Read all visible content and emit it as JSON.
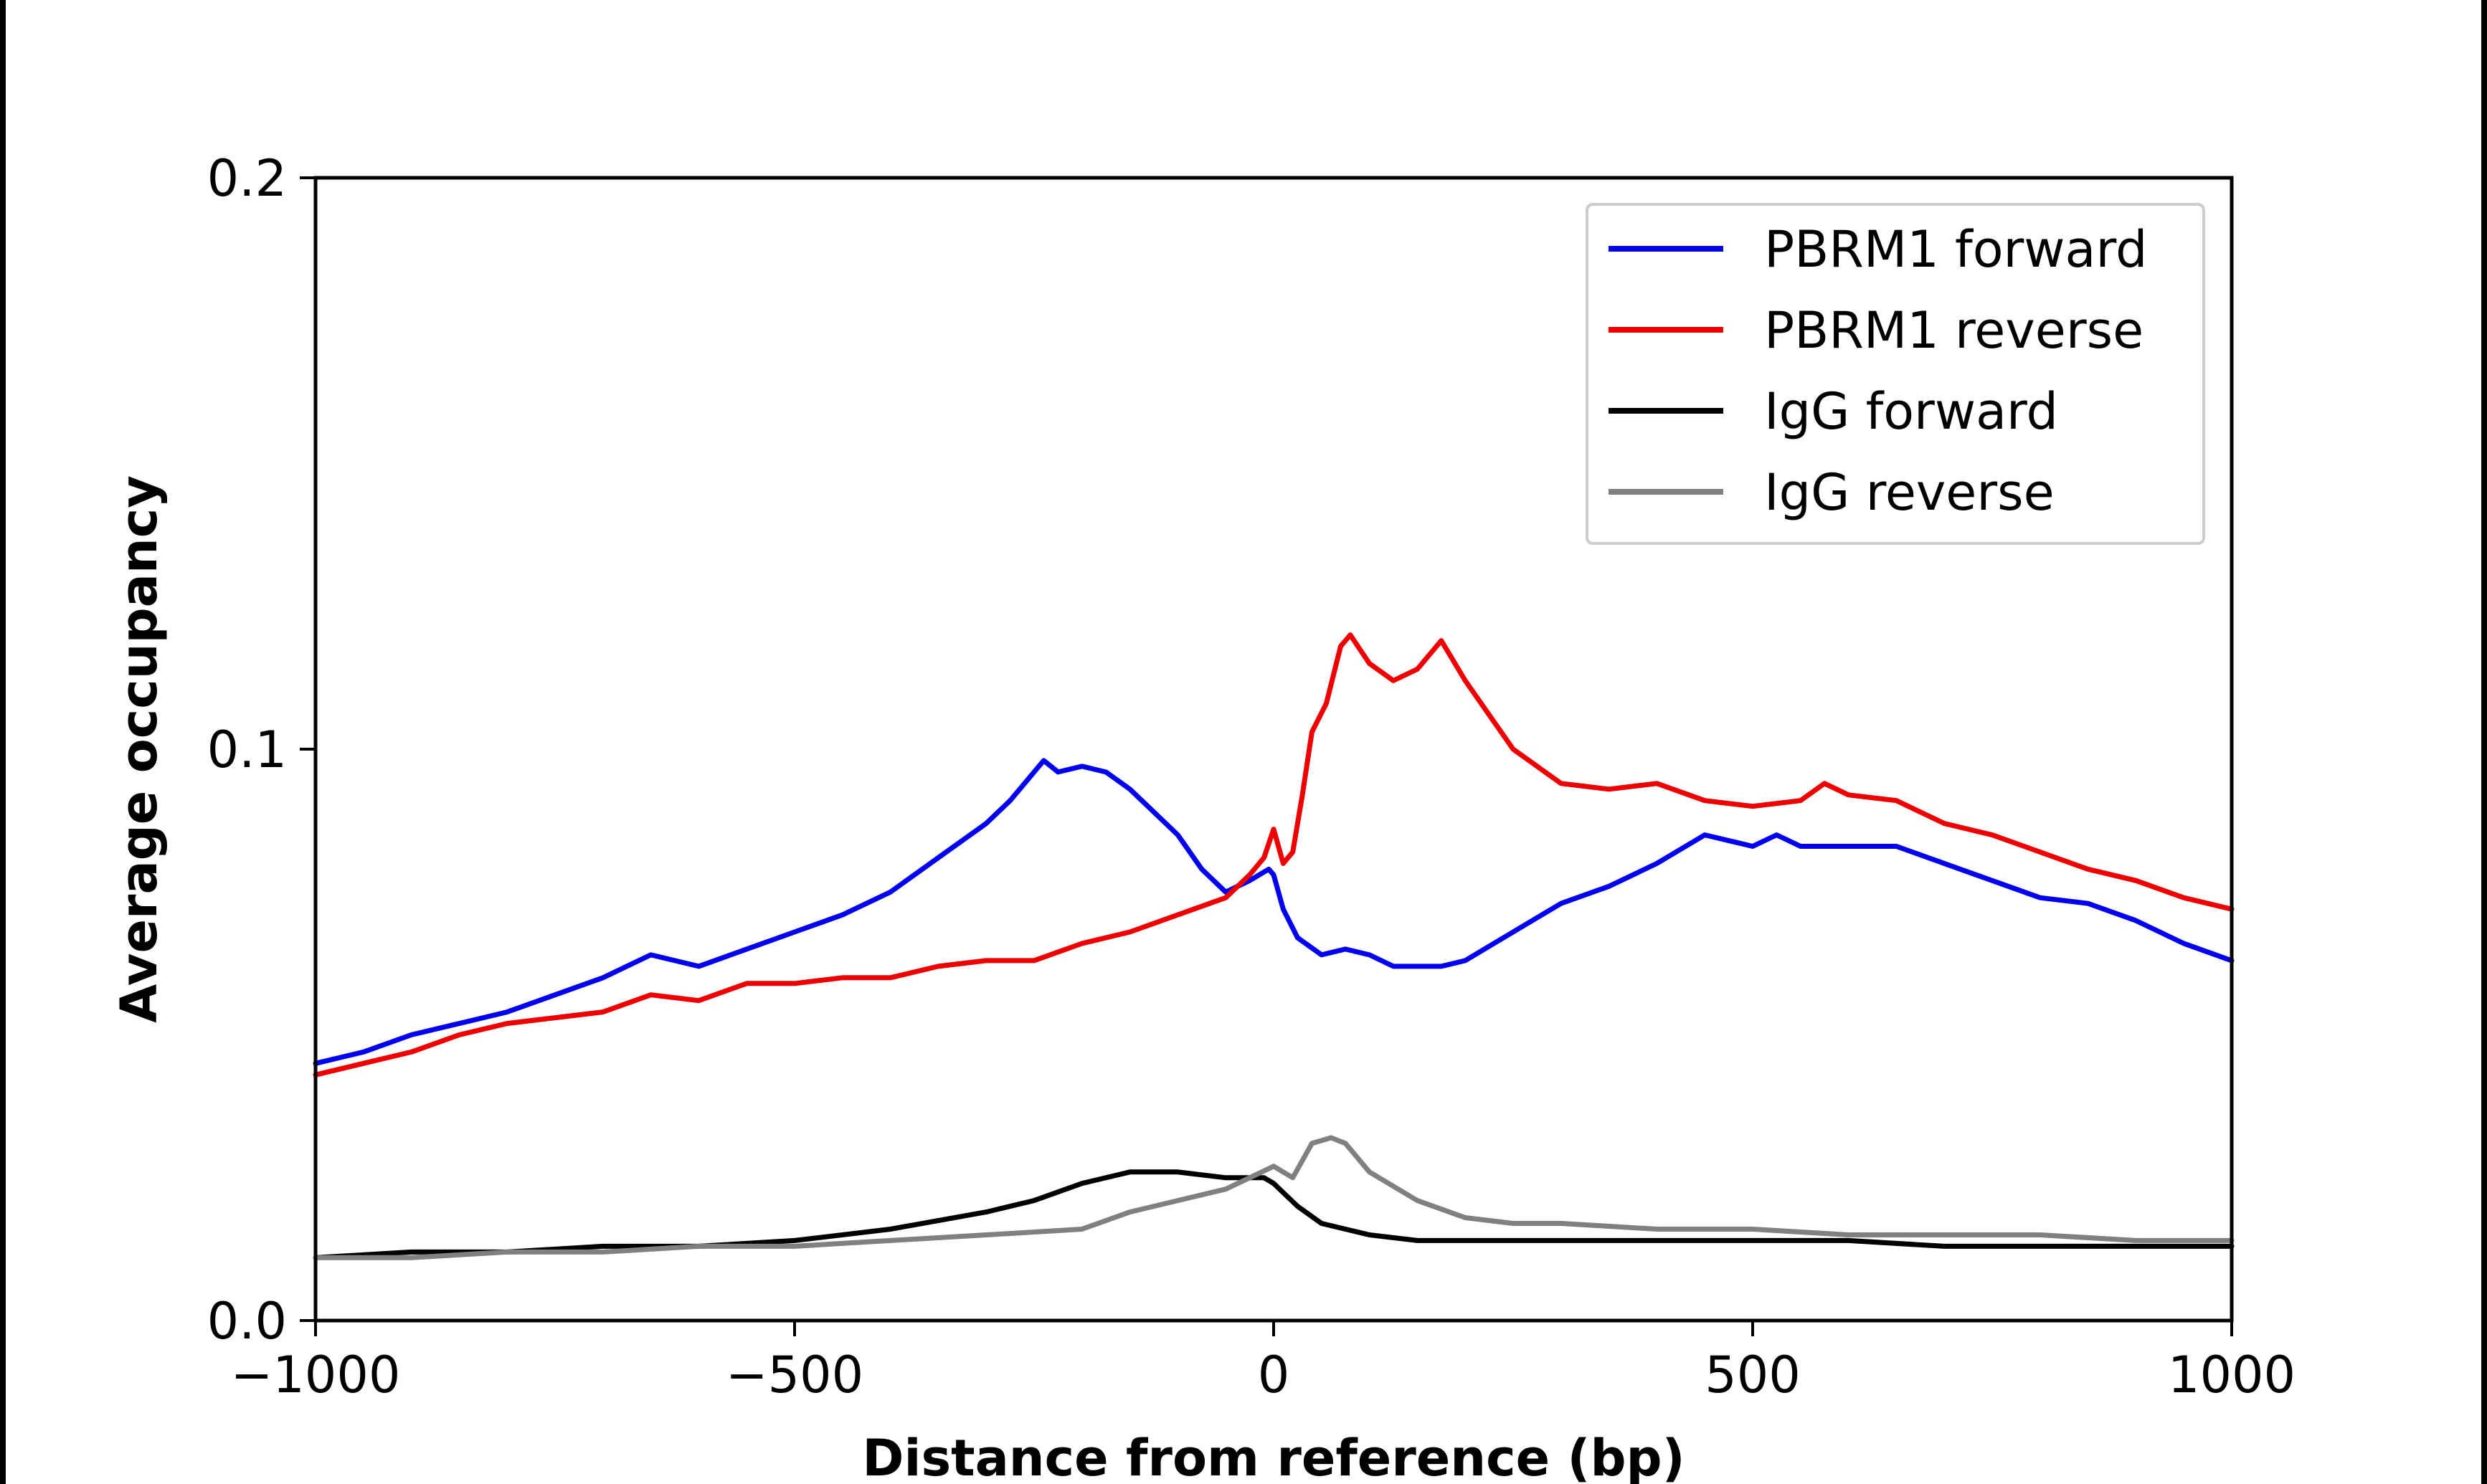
{
  "chart_data": {
    "type": "line",
    "title": "",
    "xlabel": "Distance from reference (bp)",
    "ylabel": "Average occupancy",
    "xlim": [
      -1000,
      1000
    ],
    "ylim": [
      0,
      0.2
    ],
    "xticks": [
      -1000,
      -500,
      0,
      500,
      1000
    ],
    "xtick_labels": [
      "−1000",
      "−500",
      "0",
      "500",
      "1000"
    ],
    "yticks": [
      0,
      0.1,
      0.2
    ],
    "ytick_labels": [
      "0.0",
      "0.1",
      "0.2"
    ],
    "grid": false,
    "legend_position": "top-right",
    "series": [
      {
        "name": "PBRM1 forward",
        "color": "#0000ee",
        "points": [
          [
            -1000,
            0.045
          ],
          [
            -950,
            0.047
          ],
          [
            -900,
            0.05
          ],
          [
            -850,
            0.052
          ],
          [
            -800,
            0.054
          ],
          [
            -750,
            0.057
          ],
          [
            -700,
            0.06
          ],
          [
            -650,
            0.064
          ],
          [
            -600,
            0.062
          ],
          [
            -550,
            0.065
          ],
          [
            -500,
            0.068
          ],
          [
            -450,
            0.071
          ],
          [
            -400,
            0.075
          ],
          [
            -350,
            0.081
          ],
          [
            -300,
            0.087
          ],
          [
            -275,
            0.091
          ],
          [
            -250,
            0.096
          ],
          [
            -240,
            0.098
          ],
          [
            -225,
            0.096
          ],
          [
            -200,
            0.097
          ],
          [
            -175,
            0.096
          ],
          [
            -150,
            0.093
          ],
          [
            -125,
            0.089
          ],
          [
            -100,
            0.085
          ],
          [
            -75,
            0.079
          ],
          [
            -50,
            0.075
          ],
          [
            -25,
            0.077
          ],
          [
            -5,
            0.079
          ],
          [
            0,
            0.078
          ],
          [
            10,
            0.072
          ],
          [
            25,
            0.067
          ],
          [
            50,
            0.064
          ],
          [
            75,
            0.065
          ],
          [
            100,
            0.064
          ],
          [
            125,
            0.062
          ],
          [
            150,
            0.062
          ],
          [
            175,
            0.062
          ],
          [
            200,
            0.063
          ],
          [
            250,
            0.068
          ],
          [
            300,
            0.073
          ],
          [
            350,
            0.076
          ],
          [
            400,
            0.08
          ],
          [
            450,
            0.085
          ],
          [
            500,
            0.083
          ],
          [
            525,
            0.085
          ],
          [
            550,
            0.083
          ],
          [
            600,
            0.083
          ],
          [
            650,
            0.083
          ],
          [
            700,
            0.08
          ],
          [
            750,
            0.077
          ],
          [
            800,
            0.074
          ],
          [
            850,
            0.073
          ],
          [
            900,
            0.07
          ],
          [
            950,
            0.066
          ],
          [
            1000,
            0.063
          ]
        ]
      },
      {
        "name": "PBRM1 reverse",
        "color": "#ee0000",
        "points": [
          [
            -1000,
            0.043
          ],
          [
            -950,
            0.045
          ],
          [
            -900,
            0.047
          ],
          [
            -850,
            0.05
          ],
          [
            -800,
            0.052
          ],
          [
            -750,
            0.053
          ],
          [
            -700,
            0.054
          ],
          [
            -650,
            0.057
          ],
          [
            -600,
            0.056
          ],
          [
            -550,
            0.059
          ],
          [
            -500,
            0.059
          ],
          [
            -450,
            0.06
          ],
          [
            -400,
            0.06
          ],
          [
            -350,
            0.062
          ],
          [
            -300,
            0.063
          ],
          [
            -250,
            0.063
          ],
          [
            -200,
            0.066
          ],
          [
            -150,
            0.068
          ],
          [
            -100,
            0.071
          ],
          [
            -50,
            0.074
          ],
          [
            -25,
            0.078
          ],
          [
            -10,
            0.081
          ],
          [
            0,
            0.086
          ],
          [
            10,
            0.08
          ],
          [
            20,
            0.082
          ],
          [
            30,
            0.092
          ],
          [
            40,
            0.103
          ],
          [
            55,
            0.108
          ],
          [
            70,
            0.118
          ],
          [
            80,
            0.12
          ],
          [
            100,
            0.115
          ],
          [
            125,
            0.112
          ],
          [
            150,
            0.114
          ],
          [
            175,
            0.119
          ],
          [
            200,
            0.112
          ],
          [
            225,
            0.106
          ],
          [
            250,
            0.1
          ],
          [
            275,
            0.097
          ],
          [
            300,
            0.094
          ],
          [
            350,
            0.093
          ],
          [
            400,
            0.094
          ],
          [
            450,
            0.091
          ],
          [
            500,
            0.09
          ],
          [
            550,
            0.091
          ],
          [
            575,
            0.094
          ],
          [
            600,
            0.092
          ],
          [
            650,
            0.091
          ],
          [
            700,
            0.087
          ],
          [
            750,
            0.085
          ],
          [
            800,
            0.082
          ],
          [
            850,
            0.079
          ],
          [
            900,
            0.077
          ],
          [
            950,
            0.074
          ],
          [
            1000,
            0.072
          ]
        ]
      },
      {
        "name": "IgG forward",
        "color": "#000000",
        "points": [
          [
            -1000,
            0.011
          ],
          [
            -900,
            0.012
          ],
          [
            -800,
            0.012
          ],
          [
            -700,
            0.013
          ],
          [
            -600,
            0.013
          ],
          [
            -500,
            0.014
          ],
          [
            -400,
            0.016
          ],
          [
            -300,
            0.019
          ],
          [
            -250,
            0.021
          ],
          [
            -200,
            0.024
          ],
          [
            -150,
            0.026
          ],
          [
            -100,
            0.026
          ],
          [
            -50,
            0.025
          ],
          [
            -10,
            0.025
          ],
          [
            0,
            0.024
          ],
          [
            25,
            0.02
          ],
          [
            50,
            0.017
          ],
          [
            100,
            0.015
          ],
          [
            150,
            0.014
          ],
          [
            200,
            0.014
          ],
          [
            300,
            0.014
          ],
          [
            400,
            0.014
          ],
          [
            500,
            0.014
          ],
          [
            600,
            0.014
          ],
          [
            700,
            0.013
          ],
          [
            800,
            0.013
          ],
          [
            900,
            0.013
          ],
          [
            1000,
            0.013
          ]
        ]
      },
      {
        "name": "IgG reverse",
        "color": "#808080",
        "points": [
          [
            -1000,
            0.011
          ],
          [
            -900,
            0.011
          ],
          [
            -800,
            0.012
          ],
          [
            -700,
            0.012
          ],
          [
            -600,
            0.013
          ],
          [
            -500,
            0.013
          ],
          [
            -400,
            0.014
          ],
          [
            -300,
            0.015
          ],
          [
            -200,
            0.016
          ],
          [
            -150,
            0.019
          ],
          [
            -100,
            0.021
          ],
          [
            -50,
            0.023
          ],
          [
            -25,
            0.025
          ],
          [
            0,
            0.027
          ],
          [
            20,
            0.025
          ],
          [
            40,
            0.031
          ],
          [
            60,
            0.032
          ],
          [
            75,
            0.031
          ],
          [
            100,
            0.026
          ],
          [
            150,
            0.021
          ],
          [
            200,
            0.018
          ],
          [
            250,
            0.017
          ],
          [
            300,
            0.017
          ],
          [
            400,
            0.016
          ],
          [
            500,
            0.016
          ],
          [
            600,
            0.015
          ],
          [
            700,
            0.015
          ],
          [
            800,
            0.015
          ],
          [
            900,
            0.014
          ],
          [
            1000,
            0.014
          ]
        ]
      }
    ]
  }
}
